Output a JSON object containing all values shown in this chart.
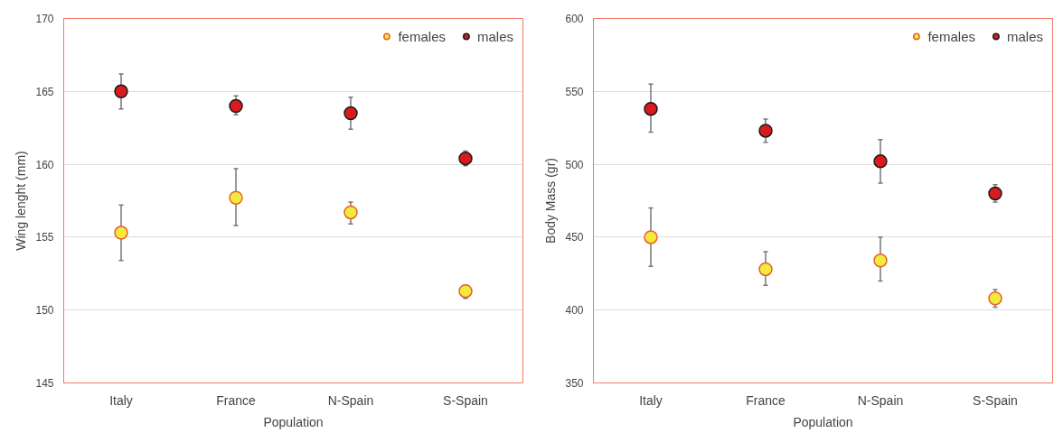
{
  "chart_data": [
    {
      "type": "scatter",
      "categories": [
        "Italy",
        "France",
        "N-Spain",
        "S-Spain"
      ],
      "xlabel": "Population",
      "ylabel": "Wing lenght (mm)",
      "ylim": [
        145,
        170
      ],
      "yticks": [
        145,
        150,
        155,
        160,
        165,
        170
      ],
      "grid": "y",
      "legend": "top right",
      "marker": "circle",
      "series": [
        {
          "name": "females",
          "color": "#f2ea3c",
          "values": [
            155.3,
            157.7,
            156.7,
            151.3
          ],
          "errors": [
            [
              153.4,
              157.2
            ],
            [
              155.8,
              159.7
            ],
            [
              155.9,
              157.4
            ],
            [
              150.8,
              151.7
            ]
          ]
        },
        {
          "name": "males",
          "color": "#d91a1e",
          "values": [
            165.0,
            164.0,
            163.5,
            160.4
          ],
          "errors": [
            [
              163.8,
              166.2
            ],
            [
              163.4,
              164.7
            ],
            [
              162.4,
              164.6
            ],
            [
              159.9,
              160.9
            ]
          ]
        }
      ]
    },
    {
      "type": "scatter",
      "categories": [
        "Italy",
        "France",
        "N-Spain",
        "S-Spain"
      ],
      "xlabel": "Population",
      "ylabel": "Body Mass (gr)",
      "ylim": [
        350,
        600
      ],
      "yticks": [
        350,
        400,
        450,
        500,
        550,
        600
      ],
      "grid": "y",
      "legend": "top right",
      "marker": "circle",
      "series": [
        {
          "name": "females",
          "color": "#f2ea3c",
          "values": [
            450,
            428,
            434,
            408
          ],
          "errors": [
            [
              430,
              470
            ],
            [
              417,
              440
            ],
            [
              420,
              450
            ],
            [
              402,
              414
            ]
          ]
        },
        {
          "name": "males",
          "color": "#d91a1e",
          "values": [
            538,
            523,
            502,
            480
          ],
          "errors": [
            [
              522,
              555
            ],
            [
              515,
              531
            ],
            [
              487,
              517
            ],
            [
              474,
              486
            ]
          ]
        }
      ]
    }
  ]
}
